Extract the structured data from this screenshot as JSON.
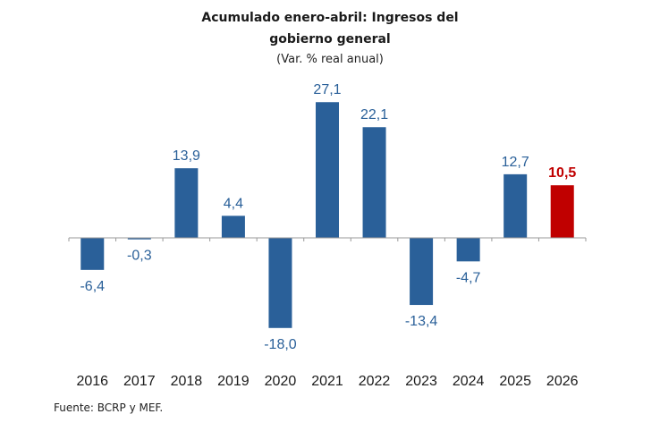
{
  "chart_data": {
    "type": "bar",
    "title": "Acumulado enero-abril: Ingresos del gobierno general",
    "title_line1": "Acumulado enero-abril: Ingresos del",
    "title_line2": "gobierno general",
    "subtitle": "(Var. % real anual)",
    "categories": [
      "2016",
      "2017",
      "2018",
      "2019",
      "2020",
      "2021",
      "2022",
      "2023",
      "2024",
      "2025",
      "2026"
    ],
    "values": [
      -6.4,
      -0.3,
      13.9,
      4.4,
      -18.0,
      27.1,
      22.1,
      -13.4,
      -4.7,
      12.7,
      10.5
    ],
    "value_labels": [
      "-6,4",
      "-0,3",
      "13,9",
      "4,4",
      "-18,0",
      "27,1",
      "22,1",
      "-13,4",
      "-4,7",
      "12,7",
      "10,5"
    ],
    "highlight_index": 10,
    "colors": {
      "default": "#2a6099",
      "highlight": "#c00000",
      "axis": "#999999",
      "ticklabel": "#1a1a1a"
    },
    "ylim": [
      -20,
      30
    ],
    "grid": false,
    "legend": "none"
  },
  "source": "Fuente: BCRP y MEF."
}
